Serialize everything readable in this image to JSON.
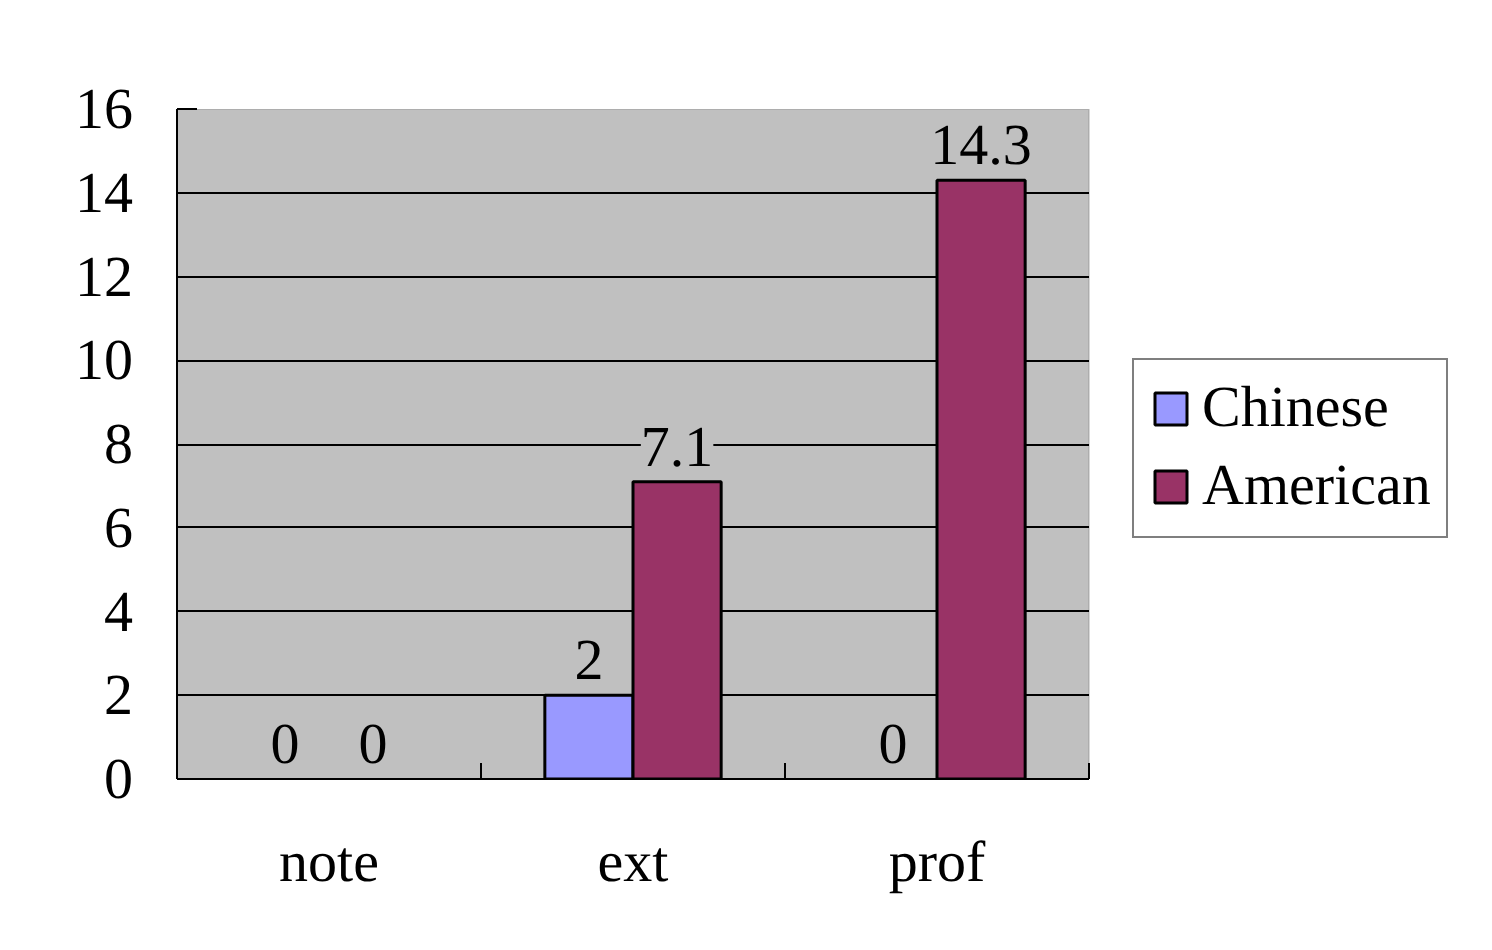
{
  "chart_data": {
    "type": "bar",
    "categories": [
      "note",
      "ext",
      "prof"
    ],
    "series": [
      {
        "name": "Chinese",
        "color": "#9999ff",
        "values": [
          0,
          2,
          0
        ]
      },
      {
        "name": "American",
        "color": "#993366",
        "values": [
          0,
          7.1,
          14.3
        ]
      }
    ],
    "ylim": [
      0,
      16
    ],
    "yticks": [
      0,
      2,
      4,
      6,
      8,
      10,
      12,
      14,
      16
    ],
    "grid": "y",
    "legend": "right",
    "data_labels": true
  }
}
